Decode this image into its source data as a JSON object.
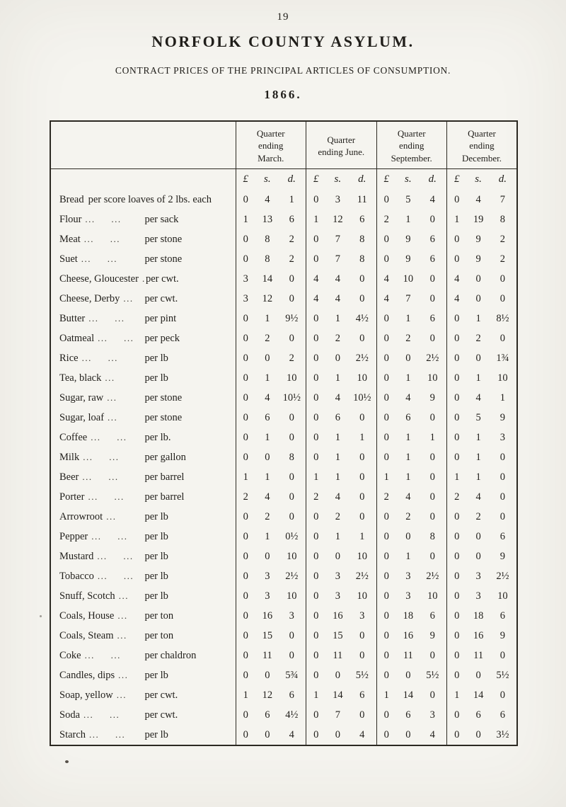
{
  "page": {
    "number": "19",
    "title": "NORFOLK COUNTY ASYLUM.",
    "subtitle": "CONTRACT PRICES OF THE PRINCIPAL ARTICLES OF CONSUMPTION.",
    "year": "1866."
  },
  "table": {
    "column_headers": [
      "Quarter ending March.",
      "Quarter ending June.",
      "Quarter ending September.",
      "Quarter ending December."
    ],
    "currency_headers": [
      "£",
      "s.",
      "d."
    ],
    "rows": [
      {
        "name": "Bread",
        "dots": "",
        "unit": "per score loaves of 2 lbs. each",
        "wide_unit": true,
        "q1": [
          "0",
          "4",
          "1"
        ],
        "q2": [
          "0",
          "3",
          "11"
        ],
        "q3": [
          "0",
          "5",
          "4"
        ],
        "q4": [
          "0",
          "4",
          "7"
        ]
      },
      {
        "name": "Flour",
        "dots": "... ...",
        "unit": "per sack",
        "q1": [
          "1",
          "13",
          "6"
        ],
        "q2": [
          "1",
          "12",
          "6"
        ],
        "q3": [
          "2",
          "1",
          "0"
        ],
        "q4": [
          "1",
          "19",
          "8"
        ]
      },
      {
        "name": "Meat",
        "dots": "... ...",
        "unit": "per stone",
        "q1": [
          "0",
          "8",
          "2"
        ],
        "q2": [
          "0",
          "7",
          "8"
        ],
        "q3": [
          "0",
          "9",
          "6"
        ],
        "q4": [
          "0",
          "9",
          "2"
        ]
      },
      {
        "name": "Suet",
        "dots": "... ...",
        "unit": "per stone",
        "q1": [
          "0",
          "8",
          "2"
        ],
        "q2": [
          "0",
          "7",
          "8"
        ],
        "q3": [
          "0",
          "9",
          "6"
        ],
        "q4": [
          "0",
          "9",
          "2"
        ]
      },
      {
        "name": "Cheese, Gloucester",
        "dots": "...",
        "unit": "per cwt.",
        "q1": [
          "3",
          "14",
          "0"
        ],
        "q2": [
          "4",
          "4",
          "0"
        ],
        "q3": [
          "4",
          "10",
          "0"
        ],
        "q4": [
          "4",
          "0",
          "0"
        ]
      },
      {
        "name": "Cheese, Derby",
        "dots": "...",
        "unit": "per cwt.",
        "q1": [
          "3",
          "12",
          "0"
        ],
        "q2": [
          "4",
          "4",
          "0"
        ],
        "q3": [
          "4",
          "7",
          "0"
        ],
        "q4": [
          "4",
          "0",
          "0"
        ]
      },
      {
        "name": "Butter",
        "dots": "... ...",
        "unit": "per pint",
        "q1": [
          "0",
          "1",
          "9½"
        ],
        "q2": [
          "0",
          "1",
          "4½"
        ],
        "q3": [
          "0",
          "1",
          "6"
        ],
        "q4": [
          "0",
          "1",
          "8½"
        ]
      },
      {
        "name": "Oatmeal",
        "dots": "... ...",
        "unit": "per peck",
        "q1": [
          "0",
          "2",
          "0"
        ],
        "q2": [
          "0",
          "2",
          "0"
        ],
        "q3": [
          "0",
          "2",
          "0"
        ],
        "q4": [
          "0",
          "2",
          "0"
        ]
      },
      {
        "name": "Rice",
        "dots": "... ...",
        "unit": "per lb",
        "q1": [
          "0",
          "0",
          "2"
        ],
        "q2": [
          "0",
          "0",
          "2½"
        ],
        "q3": [
          "0",
          "0",
          "2½"
        ],
        "q4": [
          "0",
          "0",
          "1¾"
        ]
      },
      {
        "name": "Tea, black",
        "dots": "...",
        "unit": "per lb",
        "q1": [
          "0",
          "1",
          "10"
        ],
        "q2": [
          "0",
          "1",
          "10"
        ],
        "q3": [
          "0",
          "1",
          "10"
        ],
        "q4": [
          "0",
          "1",
          "10"
        ]
      },
      {
        "name": "Sugar, raw",
        "dots": "...",
        "unit": "per stone",
        "q1": [
          "0",
          "4",
          "10½"
        ],
        "q2": [
          "0",
          "4",
          "10½"
        ],
        "q3": [
          "0",
          "4",
          "9"
        ],
        "q4": [
          "0",
          "4",
          "1"
        ]
      },
      {
        "name": "Sugar, loaf",
        "dots": "...",
        "unit": "per stone",
        "q1": [
          "0",
          "6",
          "0"
        ],
        "q2": [
          "0",
          "6",
          "0"
        ],
        "q3": [
          "0",
          "6",
          "0"
        ],
        "q4": [
          "0",
          "5",
          "9"
        ]
      },
      {
        "name": "Coffee",
        "dots": "... ...",
        "unit": "per lb.",
        "q1": [
          "0",
          "1",
          "0"
        ],
        "q2": [
          "0",
          "1",
          "1"
        ],
        "q3": [
          "0",
          "1",
          "1"
        ],
        "q4": [
          "0",
          "1",
          "3"
        ]
      },
      {
        "name": "Milk",
        "dots": "... ...",
        "unit": "per gallon",
        "q1": [
          "0",
          "0",
          "8"
        ],
        "q2": [
          "0",
          "1",
          "0"
        ],
        "q3": [
          "0",
          "1",
          "0"
        ],
        "q4": [
          "0",
          "1",
          "0"
        ]
      },
      {
        "name": "Beer",
        "dots": "... ...",
        "unit": "per barrel",
        "q1": [
          "1",
          "1",
          "0"
        ],
        "q2": [
          "1",
          "1",
          "0"
        ],
        "q3": [
          "1",
          "1",
          "0"
        ],
        "q4": [
          "1",
          "1",
          "0"
        ]
      },
      {
        "name": "Porter",
        "dots": "... ...",
        "unit": "per barrel",
        "q1": [
          "2",
          "4",
          "0"
        ],
        "q2": [
          "2",
          "4",
          "0"
        ],
        "q3": [
          "2",
          "4",
          "0"
        ],
        "q4": [
          "2",
          "4",
          "0"
        ]
      },
      {
        "name": "Arrowroot",
        "dots": "...",
        "unit": "per lb",
        "q1": [
          "0",
          "2",
          "0"
        ],
        "q2": [
          "0",
          "2",
          "0"
        ],
        "q3": [
          "0",
          "2",
          "0"
        ],
        "q4": [
          "0",
          "2",
          "0"
        ]
      },
      {
        "name": "Pepper",
        "dots": "... ...",
        "unit": "per lb",
        "q1": [
          "0",
          "1",
          "0½"
        ],
        "q2": [
          "0",
          "1",
          "1"
        ],
        "q3": [
          "0",
          "0",
          "8"
        ],
        "q4": [
          "0",
          "0",
          "6"
        ]
      },
      {
        "name": "Mustard",
        "dots": "... ...",
        "unit": "per lb",
        "q1": [
          "0",
          "0",
          "10"
        ],
        "q2": [
          "0",
          "0",
          "10"
        ],
        "q3": [
          "0",
          "1",
          "0"
        ],
        "q4": [
          "0",
          "0",
          "9"
        ]
      },
      {
        "name": "Tobacco",
        "dots": "... ...",
        "unit": "per lb",
        "q1": [
          "0",
          "3",
          "2½"
        ],
        "q2": [
          "0",
          "3",
          "2½"
        ],
        "q3": [
          "0",
          "3",
          "2½"
        ],
        "q4": [
          "0",
          "3",
          "2½"
        ]
      },
      {
        "name": "Snuff, Scotch",
        "dots": "...",
        "unit": "per lb",
        "q1": [
          "0",
          "3",
          "10"
        ],
        "q2": [
          "0",
          "3",
          "10"
        ],
        "q3": [
          "0",
          "3",
          "10"
        ],
        "q4": [
          "0",
          "3",
          "10"
        ]
      },
      {
        "name": "Coals, House",
        "dots": "...",
        "unit": "per ton",
        "q1": [
          "0",
          "16",
          "3"
        ],
        "q2": [
          "0",
          "16",
          "3"
        ],
        "q3": [
          "0",
          "18",
          "6"
        ],
        "q4": [
          "0",
          "18",
          "6"
        ]
      },
      {
        "name": "Coals, Steam",
        "dots": "...",
        "unit": "per ton",
        "q1": [
          "0",
          "15",
          "0"
        ],
        "q2": [
          "0",
          "15",
          "0"
        ],
        "q3": [
          "0",
          "16",
          "9"
        ],
        "q4": [
          "0",
          "16",
          "9"
        ]
      },
      {
        "name": "Coke",
        "dots": "... ...",
        "unit": "per chaldron",
        "q1": [
          "0",
          "11",
          "0"
        ],
        "q2": [
          "0",
          "11",
          "0"
        ],
        "q3": [
          "0",
          "11",
          "0"
        ],
        "q4": [
          "0",
          "11",
          "0"
        ]
      },
      {
        "name": "Candles, dips",
        "dots": "...",
        "unit": "per lb",
        "q1": [
          "0",
          "0",
          "5¾"
        ],
        "q2": [
          "0",
          "0",
          "5½"
        ],
        "q3": [
          "0",
          "0",
          "5½"
        ],
        "q4": [
          "0",
          "0",
          "5½"
        ]
      },
      {
        "name": "Soap, yellow",
        "dots": "...",
        "unit": "per cwt.",
        "q1": [
          "1",
          "12",
          "6"
        ],
        "q2": [
          "1",
          "14",
          "6"
        ],
        "q3": [
          "1",
          "14",
          "0"
        ],
        "q4": [
          "1",
          "14",
          "0"
        ]
      },
      {
        "name": "Soda",
        "dots": "... ...",
        "unit": "per cwt.",
        "q1": [
          "0",
          "6",
          "4½"
        ],
        "q2": [
          "0",
          "7",
          "0"
        ],
        "q3": [
          "0",
          "6",
          "3"
        ],
        "q4": [
          "0",
          "6",
          "6"
        ]
      },
      {
        "name": "Starch",
        "dots": "... ...",
        "unit": "per lb",
        "q1": [
          "0",
          "0",
          "4"
        ],
        "q2": [
          "0",
          "0",
          "4"
        ],
        "q3": [
          "0",
          "0",
          "4"
        ],
        "q4": [
          "0",
          "0",
          "3½"
        ]
      }
    ]
  }
}
